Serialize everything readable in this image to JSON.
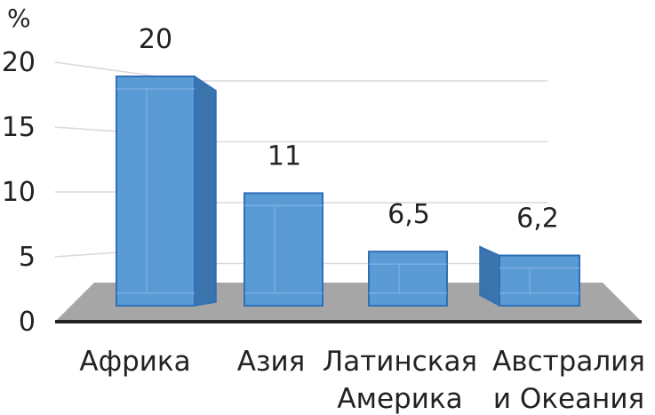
{
  "chart_data": {
    "type": "bar",
    "unit_label": "%",
    "categories": [
      [
        "Африка"
      ],
      [
        "Азия"
      ],
      [
        "Латинская",
        "Америка"
      ],
      [
        "Австралия",
        "и Океания"
      ]
    ],
    "values": [
      20,
      11,
      6.5,
      6.2
    ],
    "data_labels": [
      "20",
      "11",
      "6,5",
      "6,2"
    ],
    "yticks": [
      "0",
      "5",
      "10",
      "15",
      "20"
    ],
    "ylim": [
      0,
      20
    ],
    "grid": true,
    "style": "3d-column",
    "bar_color": "#5b9bd5",
    "bar_edge_color": "#2f6fb8",
    "floor_color": "#a6a6a6"
  }
}
